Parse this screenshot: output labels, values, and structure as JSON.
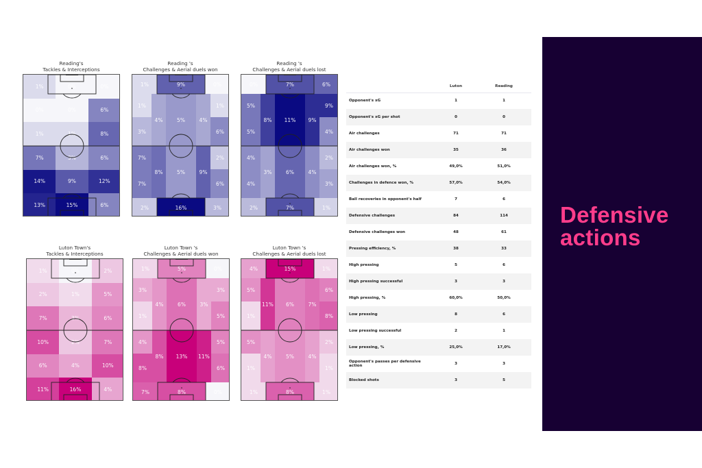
{
  "colors": {
    "reading": "#0a0a82",
    "luton": "#c8007a",
    "panel_bg": "#170033",
    "panel_text": "#ff3d8b",
    "row_alt": "#f3f3f3"
  },
  "side_panel": {
    "title_line1": "Defensive",
    "title_line2": "actions"
  },
  "pitches": [
    {
      "title_line1": "Reading's",
      "title_line2": "Tackles & Interceptions"
    },
    {
      "title_line1": "Reading 's",
      "title_line2": "Challenges & Aerial duels won"
    },
    {
      "title_line1": "Reading 's",
      "title_line2": "Challenges & Aerial duels lost"
    },
    {
      "title_line1": "Luton Town's",
      "title_line2": "Tackles & Interceptions"
    },
    {
      "title_line1": "Luton Town 's",
      "title_line2": "Challenges & Aerial duels won"
    },
    {
      "title_line1": "Luton Town 's",
      "title_line2": "Challenges & Aerial duels lost"
    }
  ],
  "table": {
    "headers": [
      "",
      "Luton",
      "Reading"
    ],
    "rows": [
      [
        "Opponent's xG",
        "1",
        "1"
      ],
      [
        "Opponent's xG per shot",
        "0",
        "0"
      ],
      [
        "Air challenges",
        "71",
        "71"
      ],
      [
        "Air challenges won",
        "35",
        "36"
      ],
      [
        "Air challenges won, %",
        "49,0%",
        "51,0%"
      ],
      [
        "Challenges in defence won, %",
        "57,0%",
        "54,0%"
      ],
      [
        "Ball recoveries in opponent's half",
        "7",
        "6"
      ],
      [
        "Defensive challenges",
        "84",
        "114"
      ],
      [
        "Defensive challenges won",
        "48",
        "61"
      ],
      [
        "Pressing efficiency, %",
        "38",
        "33"
      ],
      [
        "High pressing",
        "5",
        "6"
      ],
      [
        "High pressing successful",
        "3",
        "3"
      ],
      [
        "High pressing, %",
        "60,0%",
        "50,0%"
      ],
      [
        "Low pressing",
        "8",
        "6"
      ],
      [
        "Low pressing successful",
        "2",
        "1"
      ],
      [
        "Low pressing, %",
        "25,0%",
        "17,0%"
      ],
      [
        "Opponent's passes per defensive action",
        "3",
        "3"
      ],
      [
        "Blocked shots",
        "3",
        "5"
      ]
    ]
  },
  "chart_data": [
    {
      "type": "heatmap",
      "title": "Reading's Tackles & Interceptions",
      "team": "Reading",
      "grid": "3 columns x 6 rows (top = opponent goal)",
      "cells": [
        {
          "r": 0,
          "c": 0,
          "v": 1
        },
        {
          "r": 0,
          "c": 1,
          "v": 0
        },
        {
          "r": 0,
          "c": 2,
          "v": 0
        },
        {
          "r": 1,
          "c": 0,
          "v": 0
        },
        {
          "r": 1,
          "c": 1,
          "v": 0
        },
        {
          "r": 1,
          "c": 2,
          "v": 6
        },
        {
          "r": 2,
          "c": 0,
          "v": 1
        },
        {
          "r": 2,
          "c": 1,
          "v": 1
        },
        {
          "r": 2,
          "c": 2,
          "v": 8
        },
        {
          "r": 3,
          "c": 0,
          "v": 7
        },
        {
          "r": 3,
          "c": 1,
          "v": 3
        },
        {
          "r": 3,
          "c": 2,
          "v": 6
        },
        {
          "r": 4,
          "c": 0,
          "v": 14
        },
        {
          "r": 4,
          "c": 1,
          "v": 9
        },
        {
          "r": 4,
          "c": 2,
          "v": 12
        },
        {
          "r": 5,
          "c": 0,
          "v": 13
        },
        {
          "r": 5,
          "c": 1,
          "v": 15
        },
        {
          "r": 5,
          "c": 2,
          "v": 6
        }
      ]
    },
    {
      "type": "heatmap",
      "title": "Reading 's Challenges & Aerial duels won",
      "team": "Reading",
      "zones": [
        {
          "zone": "opp-box",
          "v": 9
        },
        {
          "zone": "opp-left-top",
          "v": 1
        },
        {
          "zone": "opp-right-top",
          "v": 0
        },
        {
          "zone": "left-wing-att-upper",
          "v": 1
        },
        {
          "zone": "left-halfspace-att",
          "v": 4
        },
        {
          "zone": "center-att",
          "v": 5
        },
        {
          "zone": "right-halfspace-att",
          "v": 4
        },
        {
          "zone": "right-wing-att-upper",
          "v": 1
        },
        {
          "zone": "left-wing-att-lower",
          "v": 3
        },
        {
          "zone": "right-wing-att-lower",
          "v": 6
        },
        {
          "zone": "left-wing-def-upper",
          "v": 7
        },
        {
          "zone": "left-halfspace-def",
          "v": 8
        },
        {
          "zone": "center-def",
          "v": 5
        },
        {
          "zone": "right-halfspace-def",
          "v": 9
        },
        {
          "zone": "right-wing-def-upper",
          "v": 2
        },
        {
          "zone": "left-wing-def-lower",
          "v": 7
        },
        {
          "zone": "right-wing-def-lower",
          "v": 6
        },
        {
          "zone": "own-left-bottom",
          "v": 2
        },
        {
          "zone": "own-box",
          "v": 16
        },
        {
          "zone": "own-right-bottom",
          "v": 3
        }
      ]
    },
    {
      "type": "heatmap",
      "title": "Reading 's Challenges & Aerial duels lost",
      "team": "Reading",
      "zones": [
        {
          "zone": "opp-box",
          "v": 7
        },
        {
          "zone": "opp-left-top",
          "v": 0
        },
        {
          "zone": "opp-right-top",
          "v": 6
        },
        {
          "zone": "left-wing-att-upper",
          "v": 5
        },
        {
          "zone": "left-halfspace-att",
          "v": 8
        },
        {
          "zone": "center-att",
          "v": 11
        },
        {
          "zone": "right-halfspace-att",
          "v": 9
        },
        {
          "zone": "right-wing-att-upper",
          "v": 9
        },
        {
          "zone": "left-wing-att-lower",
          "v": 5
        },
        {
          "zone": "right-wing-att-lower",
          "v": 4
        },
        {
          "zone": "left-wing-def-upper",
          "v": 4
        },
        {
          "zone": "left-halfspace-def",
          "v": 3
        },
        {
          "zone": "center-def",
          "v": 6
        },
        {
          "zone": "right-halfspace-def",
          "v": 4
        },
        {
          "zone": "right-wing-def-upper",
          "v": 2
        },
        {
          "zone": "left-wing-def-lower",
          "v": 4
        },
        {
          "zone": "right-wing-def-lower",
          "v": 3
        },
        {
          "zone": "own-left-bottom",
          "v": 2
        },
        {
          "zone": "own-box",
          "v": 7
        },
        {
          "zone": "own-right-bottom",
          "v": 1
        }
      ]
    },
    {
      "type": "heatmap",
      "title": "Luton Town's Tackles & Interceptions",
      "team": "Luton Town",
      "grid": "3 columns x 6 rows (top = opponent goal)",
      "cells": [
        {
          "r": 0,
          "c": 0,
          "v": 1
        },
        {
          "r": 0,
          "c": 1,
          "v": 0
        },
        {
          "r": 0,
          "c": 2,
          "v": 2
        },
        {
          "r": 1,
          "c": 0,
          "v": 2
        },
        {
          "r": 1,
          "c": 1,
          "v": 1
        },
        {
          "r": 1,
          "c": 2,
          "v": 5
        },
        {
          "r": 2,
          "c": 0,
          "v": 7
        },
        {
          "r": 2,
          "c": 1,
          "v": 3
        },
        {
          "r": 2,
          "c": 2,
          "v": 6
        },
        {
          "r": 3,
          "c": 0,
          "v": 10
        },
        {
          "r": 3,
          "c": 1,
          "v": 2
        },
        {
          "r": 3,
          "c": 2,
          "v": 7
        },
        {
          "r": 4,
          "c": 0,
          "v": 6
        },
        {
          "r": 4,
          "c": 1,
          "v": 4
        },
        {
          "r": 4,
          "c": 2,
          "v": 10
        },
        {
          "r": 5,
          "c": 0,
          "v": 11
        },
        {
          "r": 5,
          "c": 1,
          "v": 16
        },
        {
          "r": 5,
          "c": 2,
          "v": 4
        }
      ]
    },
    {
      "type": "heatmap",
      "title": "Luton Town 's Challenges & Aerial duels won",
      "team": "Luton Town",
      "zones": [
        {
          "zone": "opp-box",
          "v": 5
        },
        {
          "zone": "opp-left-top",
          "v": 1
        },
        {
          "zone": "opp-right-top",
          "v": 0
        },
        {
          "zone": "left-wing-att-upper",
          "v": 3
        },
        {
          "zone": "left-halfspace-att",
          "v": 4
        },
        {
          "zone": "center-att",
          "v": 6
        },
        {
          "zone": "right-halfspace-att",
          "v": 3
        },
        {
          "zone": "right-wing-att-upper",
          "v": 3
        },
        {
          "zone": "left-wing-att-lower",
          "v": 1
        },
        {
          "zone": "right-wing-att-lower",
          "v": 5
        },
        {
          "zone": "left-wing-def-upper",
          "v": 4
        },
        {
          "zone": "left-halfspace-def",
          "v": 8
        },
        {
          "zone": "center-def",
          "v": 13
        },
        {
          "zone": "right-halfspace-def",
          "v": 11
        },
        {
          "zone": "right-wing-def-upper",
          "v": 5
        },
        {
          "zone": "left-wing-def-lower",
          "v": 8
        },
        {
          "zone": "right-wing-def-lower",
          "v": 6
        },
        {
          "zone": "own-left-bottom",
          "v": 7
        },
        {
          "zone": "own-box",
          "v": 8
        },
        {
          "zone": "own-right-bottom",
          "v": 0
        }
      ]
    },
    {
      "type": "heatmap",
      "title": "Luton Town 's Challenges & Aerial duels lost",
      "team": "Luton Town",
      "zones": [
        {
          "zone": "opp-box",
          "v": 15
        },
        {
          "zone": "opp-left-top",
          "v": 4
        },
        {
          "zone": "opp-right-top",
          "v": 1
        },
        {
          "zone": "left-wing-att-upper",
          "v": 5
        },
        {
          "zone": "left-halfspace-att",
          "v": 11
        },
        {
          "zone": "center-att",
          "v": 6
        },
        {
          "zone": "right-halfspace-att",
          "v": 7
        },
        {
          "zone": "right-wing-att-upper",
          "v": 6
        },
        {
          "zone": "left-wing-att-lower",
          "v": 1
        },
        {
          "zone": "right-wing-att-lower",
          "v": 8
        },
        {
          "zone": "left-wing-def-upper",
          "v": 5
        },
        {
          "zone": "left-halfspace-def",
          "v": 4
        },
        {
          "zone": "center-def",
          "v": 5
        },
        {
          "zone": "right-halfspace-def",
          "v": 4
        },
        {
          "zone": "right-wing-def-upper",
          "v": 2
        },
        {
          "zone": "left-wing-def-lower",
          "v": 1
        },
        {
          "zone": "right-wing-def-lower",
          "v": 1
        },
        {
          "zone": "own-left-bottom",
          "v": 1
        },
        {
          "zone": "own-box",
          "v": 8
        },
        {
          "zone": "own-right-bottom",
          "v": 1
        }
      ]
    }
  ]
}
